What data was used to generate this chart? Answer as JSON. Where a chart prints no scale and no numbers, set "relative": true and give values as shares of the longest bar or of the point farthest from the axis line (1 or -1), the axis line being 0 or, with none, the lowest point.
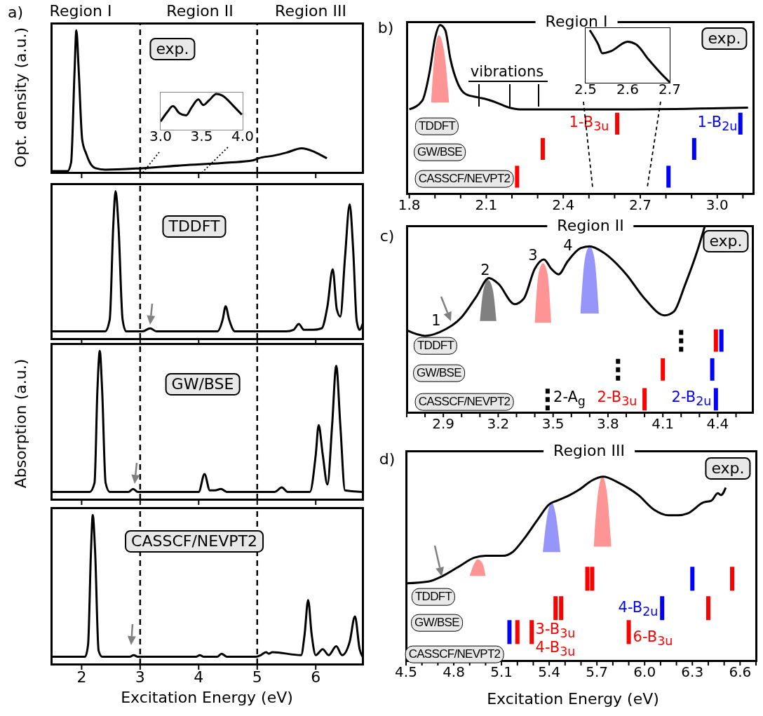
{
  "chart_data": [
    {
      "type": "line",
      "relative": true,
      "ylabel": "Opt. density (a.u.)",
      "xlim": [
        1.48,
        6.8
      ],
      "xticks": [
        2,
        3,
        4,
        5,
        6
      ],
      "tick_labels": false,
      "series": [
        {
          "color": "#000000",
          "x": [
            1.5,
            1.76,
            1.82,
            1.88,
            1.91,
            1.95,
            2.01,
            2.08,
            2.14,
            2.24,
            2.4,
            3.02,
            3.72,
            4.52,
            4.92,
            5.02,
            5.3,
            5.5,
            5.76,
            5.95,
            6.1,
            6.19
          ],
          "values": [
            0.01,
            0.01,
            0.07,
            0.72,
            1.0,
            0.72,
            0.23,
            0.13,
            0.07,
            0.03,
            0.02,
            0.03,
            0.05,
            0.07,
            0.085,
            0.1,
            0.12,
            0.14,
            0.17,
            0.15,
            0.12,
            0.1
          ]
        }
      ],
      "ref_lines": [
        {
          "axis": "x",
          "value": 3,
          "line_style": "dashed"
        },
        {
          "axis": "x",
          "value": 5,
          "line_style": "dashed"
        }
      ],
      "annotations": [
        "a)",
        "Region I",
        "Region II",
        "Region III",
        "exp."
      ]
    },
    {
      "type": "line",
      "relative": true,
      "xlim": [
        3,
        4
      ],
      "xticks": [
        {
          "value": 3,
          "label": "3.0"
        },
        3.5,
        {
          "value": 4,
          "label": "4.0"
        }
      ],
      "tick_labels": "x",
      "series": [
        {
          "color": "#000000",
          "x": [
            3.0,
            3.08,
            3.15,
            3.23,
            3.31,
            3.38,
            3.46,
            3.52,
            3.59,
            3.68,
            3.75,
            3.89,
            3.99
          ],
          "values": [
            0.23,
            0.49,
            0.66,
            0.46,
            0.4,
            0.63,
            0.85,
            0.69,
            0.82,
            1.0,
            0.96,
            0.66,
            0.42
          ]
        }
      ]
    },
    {
      "type": "line",
      "relative": true,
      "xlim": [
        1.48,
        6.8
      ],
      "xticks": [
        2,
        3,
        4,
        5,
        6
      ],
      "tick_labels": false,
      "series": [
        {
          "color": "#000000",
          "x": [
            1.5,
            2.4,
            2.48,
            2.54,
            2.58,
            2.63,
            2.7,
            2.76,
            3.04,
            3.17,
            3.28,
            4.32,
            4.41,
            4.46,
            4.52,
            4.62,
            5.5,
            5.62,
            5.71,
            5.8,
            5.95,
            6.1,
            6.2,
            6.29,
            6.36,
            6.42,
            6.5,
            6.58,
            6.64,
            6.7,
            6.75,
            6.8
          ],
          "values": [
            0.05,
            0.05,
            0.13,
            0.76,
            1.0,
            0.76,
            0.13,
            0.05,
            0.05,
            0.07,
            0.05,
            0.05,
            0.13,
            0.22,
            0.13,
            0.05,
            0.05,
            0.06,
            0.1,
            0.06,
            0.06,
            0.07,
            0.22,
            0.47,
            0.2,
            0.15,
            0.55,
            0.91,
            0.6,
            0.12,
            0.06,
            0.1
          ]
        }
      ],
      "ref_lines": [
        {
          "axis": "x",
          "value": 3,
          "line_style": "dashed"
        },
        {
          "axis": "x",
          "value": 5,
          "line_style": "dashed"
        }
      ],
      "annotations": [
        "TDDFT"
      ]
    },
    {
      "type": "line",
      "relative": true,
      "ylabel": "Absorption (a.u.)",
      "xlim": [
        1.48,
        6.8
      ],
      "xticks": [
        2,
        3,
        4,
        5,
        6
      ],
      "tick_labels": false,
      "series": [
        {
          "color": "#000000",
          "x": [
            1.5,
            2.14,
            2.22,
            2.27,
            2.31,
            2.35,
            2.41,
            2.48,
            2.8,
            2.88,
            2.96,
            4.0,
            4.1,
            4.19,
            4.28,
            4.38,
            4.48,
            5.3,
            5.42,
            5.52,
            5.9,
            6.0,
            6.05,
            6.12,
            6.2,
            6.28,
            6.35,
            6.42,
            6.5,
            6.8
          ],
          "values": [
            0.05,
            0.05,
            0.11,
            0.74,
            1.0,
            0.74,
            0.11,
            0.05,
            0.05,
            0.07,
            0.05,
            0.05,
            0.17,
            0.06,
            0.06,
            0.07,
            0.05,
            0.05,
            0.08,
            0.05,
            0.05,
            0.3,
            0.5,
            0.3,
            0.1,
            0.5,
            0.9,
            0.5,
            0.06,
            0.05
          ]
        }
      ],
      "ref_lines": [
        {
          "axis": "x",
          "value": 3,
          "line_style": "dashed"
        },
        {
          "axis": "x",
          "value": 5,
          "line_style": "dashed"
        }
      ],
      "annotations": [
        "GW/BSE"
      ]
    },
    {
      "type": "line",
      "relative": true,
      "xlabel": "Excitation Energy (eV)",
      "xlim": [
        1.48,
        6.8
      ],
      "xticks": [
        2,
        3,
        4,
        5,
        6
      ],
      "tick_labels": "x",
      "series": [
        {
          "color": "#000000",
          "x": [
            1.5,
            2.06,
            2.11,
            2.16,
            2.19,
            2.23,
            2.29,
            2.35,
            2.82,
            2.89,
            2.96,
            3.96,
            4.02,
            4.08,
            4.32,
            4.39,
            4.48,
            4.98,
            5.06,
            5.15,
            5.2,
            5.26,
            5.75,
            5.81,
            5.87,
            5.93,
            6.0,
            6.12,
            6.22,
            6.35,
            6.45,
            6.58,
            6.67,
            6.75,
            6.8
          ],
          "values": [
            0.05,
            0.05,
            0.13,
            0.76,
            1.0,
            0.76,
            0.09,
            0.05,
            0.05,
            0.06,
            0.05,
            0.05,
            0.06,
            0.05,
            0.05,
            0.07,
            0.05,
            0.05,
            0.06,
            0.08,
            0.07,
            0.08,
            0.06,
            0.2,
            0.43,
            0.2,
            0.06,
            0.1,
            0.06,
            0.12,
            0.06,
            0.15,
            0.32,
            0.1,
            0.05
          ]
        }
      ],
      "ref_lines": [
        {
          "axis": "x",
          "value": 3,
          "line_style": "dashed"
        },
        {
          "axis": "x",
          "value": 5,
          "line_style": "dashed"
        }
      ],
      "annotations": [
        "CASSCF/NEVPT2"
      ]
    },
    {
      "type": "line",
      "relative": true,
      "title": "Region I",
      "xlim": [
        1.79,
        3.14
      ],
      "xticks": [
        1.8,
        {
          "value": 1.9,
          "label": null
        },
        {
          "value": 2.0,
          "label": null
        },
        2.1,
        {
          "value": 2.2,
          "label": null
        },
        {
          "value": 2.3,
          "label": null
        },
        2.4,
        {
          "value": 2.5,
          "label": null
        },
        {
          "value": 2.6,
          "label": null
        },
        2.7,
        {
          "value": 2.8,
          "label": null
        },
        {
          "value": 2.9,
          "label": null
        },
        {
          "value": 3,
          "label": "3.0"
        },
        {
          "value": 3.1,
          "label": null
        }
      ],
      "tick_labels": "x",
      "series": [
        {
          "type": "area",
          "color": "#ff9494",
          "x": [
            1.885,
            1.9,
            1.915,
            1.935,
            1.955
          ],
          "values": [
            0.54,
            0.85,
            0.94,
            0.85,
            0.54
          ]
        },
        {
          "type": "line",
          "color": "#000000",
          "x": [
            1.8,
            1.85,
            1.88,
            1.9,
            1.92,
            1.94,
            1.96,
            1.99,
            2.02,
            2.07,
            2.1,
            2.14,
            2.19,
            2.23,
            2.37,
            2.64,
            3.12
          ],
          "values": [
            0.5,
            0.55,
            0.73,
            0.92,
            1.0,
            0.97,
            0.8,
            0.65,
            0.59,
            0.57,
            0.56,
            0.54,
            0.51,
            0.5,
            0.5,
            0.5,
            0.51
          ]
        },
        {
          "type": "line",
          "color": "#ff0000",
          "x": [
            2.61,
            2.61
          ],
          "values": [
            0.35,
            0.48
          ]
        },
        {
          "type": "line",
          "color": "#ff0000",
          "x": [
            2.32,
            2.32
          ],
          "values": [
            0.2,
            0.33
          ]
        },
        {
          "type": "line",
          "color": "#ff0000",
          "x": [
            2.22,
            2.22
          ],
          "values": [
            0.035,
            0.165
          ]
        },
        {
          "type": "line",
          "color": "#0000ff",
          "x": [
            3.09,
            3.09
          ],
          "values": [
            0.35,
            0.48
          ]
        },
        {
          "type": "line",
          "color": "#0000ff",
          "x": [
            2.91,
            2.91
          ],
          "values": [
            0.2,
            0.33
          ]
        },
        {
          "type": "line",
          "color": "#0000ff",
          "x": [
            2.81,
            2.81
          ],
          "values": [
            0.035,
            0.165
          ]
        }
      ],
      "annotations": [
        "b)",
        "exp.",
        "TDDFT",
        "GW/BSE",
        "CASSCF/NEVPT2",
        "vibrations",
        "1-B$_{3u}$",
        "1-B$_{2u}$"
      ]
    },
    {
      "type": "line",
      "relative": true,
      "xlim": [
        2.5,
        2.7
      ],
      "xticks": [
        2.5,
        2.6,
        2.7
      ],
      "tick_labels": "x",
      "series": [
        {
          "color": "#000000",
          "x": [
            2.51,
            2.53,
            2.54,
            2.56,
            2.6,
            2.62,
            2.65,
            2.68,
            2.7
          ],
          "values": [
            1.0,
            0.73,
            0.56,
            0.6,
            0.78,
            0.73,
            0.44,
            0.17,
            0.01
          ]
        }
      ]
    },
    {
      "type": "line",
      "relative": true,
      "title": "Region II",
      "xlim": [
        2.7,
        4.59
      ],
      "xticks": [
        {
          "value": 2.7,
          "label": null
        },
        {
          "value": 2.8,
          "label": null
        },
        2.9,
        {
          "value": 3,
          "label": null
        },
        {
          "value": 3.1,
          "label": null
        },
        3.2,
        {
          "value": 3.3,
          "label": null
        },
        {
          "value": 3.4,
          "label": null
        },
        3.5,
        {
          "value": 3.6,
          "label": null
        },
        {
          "value": 3.7,
          "label": null
        },
        3.8,
        {
          "value": 3.9,
          "label": null
        },
        {
          "value": 4,
          "label": null
        },
        4.1,
        {
          "value": 4.2,
          "label": null
        },
        {
          "value": 4.3,
          "label": null
        },
        4.4,
        {
          "value": 4.5,
          "label": null
        }
      ],
      "tick_labels": "x",
      "series": [
        {
          "type": "area",
          "color": "#808080",
          "x": [
            3.1,
            3.12,
            3.145,
            3.17,
            3.19
          ],
          "values": [
            0.49,
            0.66,
            0.71,
            0.66,
            0.49
          ]
        },
        {
          "type": "area",
          "color": "#ff9494",
          "x": [
            3.4,
            3.42,
            3.445,
            3.47,
            3.49
          ],
          "values": [
            0.48,
            0.74,
            0.8,
            0.74,
            0.48
          ]
        },
        {
          "type": "area",
          "color": "#9595fa",
          "x": [
            3.65,
            3.675,
            3.7,
            3.725,
            3.75
          ],
          "values": [
            0.53,
            0.83,
            0.89,
            0.83,
            0.53
          ]
        },
        {
          "type": "line",
          "color": "#000000",
          "x": [
            2.7,
            2.8,
            2.88,
            3.0,
            3.08,
            3.15,
            3.2,
            3.29,
            3.34,
            3.4,
            3.45,
            3.49,
            3.53,
            3.58,
            3.65,
            3.7,
            3.77,
            3.9,
            4.0,
            4.11,
            4.16,
            4.22,
            4.29,
            4.33
          ],
          "values": [
            0.44,
            0.41,
            0.43,
            0.51,
            0.62,
            0.72,
            0.69,
            0.58,
            0.61,
            0.77,
            0.82,
            0.77,
            0.74,
            0.81,
            0.88,
            0.89,
            0.86,
            0.74,
            0.61,
            0.52,
            0.54,
            0.68,
            0.87,
            1.0
          ]
        },
        {
          "type": "line",
          "color": "#000000",
          "line_style": "dotted",
          "x": [
            4.2,
            4.2
          ],
          "values": [
            0.325,
            0.445
          ]
        },
        {
          "type": "line",
          "color": "#000000",
          "line_style": "dotted",
          "x": [
            3.855,
            3.855
          ],
          "values": [
            0.17,
            0.29
          ]
        },
        {
          "type": "line",
          "color": "#000000",
          "line_style": "dotted",
          "x": [
            3.47,
            3.47
          ],
          "values": [
            0.01,
            0.13
          ]
        },
        {
          "type": "line",
          "color": "#ff0000",
          "x": [
            4.39,
            4.39
          ],
          "values": [
            0.325,
            0.445
          ]
        },
        {
          "type": "line",
          "color": "#ff0000",
          "x": [
            4.1,
            4.1
          ],
          "values": [
            0.17,
            0.29
          ]
        },
        {
          "type": "line",
          "color": "#ff0000",
          "x": [
            4.0,
            4.0
          ],
          "values": [
            0.01,
            0.13
          ]
        },
        {
          "type": "line",
          "color": "#0000ff",
          "x": [
            4.42,
            4.42
          ],
          "values": [
            0.325,
            0.445
          ]
        },
        {
          "type": "line",
          "color": "#0000ff",
          "x": [
            4.37,
            4.37
          ],
          "values": [
            0.17,
            0.29
          ]
        },
        {
          "type": "line",
          "color": "#0000ff",
          "x": [
            4.39,
            4.39
          ],
          "values": [
            0.01,
            0.13
          ]
        }
      ],
      "annotations": [
        "c)",
        "exp.",
        "TDDFT",
        "GW/BSE",
        "CASSCF/NEVPT2",
        "1",
        "2",
        "3",
        "4",
        "2-A$_{g}$",
        "2-B$_{3u}$",
        "2-B$_{2u}$"
      ]
    },
    {
      "type": "line",
      "relative": true,
      "title": "Region III",
      "xlabel": "Excitation Energy (eV)",
      "xlim": [
        4.5,
        6.7
      ],
      "xticks": [
        4.5,
        {
          "value": 4.6,
          "label": null
        },
        {
          "value": 4.7,
          "label": null
        },
        4.8,
        {
          "value": 4.9,
          "label": null
        },
        {
          "value": 5,
          "label": null
        },
        5.1,
        {
          "value": 5.2,
          "label": null
        },
        {
          "value": 5.3,
          "label": null
        },
        5.4,
        {
          "value": 5.5,
          "label": null
        },
        {
          "value": 5.6,
          "label": null
        },
        5.7,
        {
          "value": 5.8,
          "label": null
        },
        {
          "value": 5.9,
          "label": null
        },
        {
          "value": 6,
          "label": "6.0"
        },
        {
          "value": 6.1,
          "label": null
        },
        {
          "value": 6.2,
          "label": null
        },
        6.3,
        {
          "value": 6.4,
          "label": null
        },
        {
          "value": 6.5,
          "label": null
        },
        6.6,
        {
          "value": 6.7,
          "label": null
        }
      ],
      "tick_labels": "x",
      "series": [
        {
          "type": "area",
          "color": "#ff9494",
          "x": [
            4.9,
            4.93,
            4.95,
            4.98,
            5.0
          ],
          "values": [
            0.46,
            0.53,
            0.55,
            0.53,
            0.46
          ]
        },
        {
          "type": "area",
          "color": "#9595fa",
          "x": [
            5.36,
            5.39,
            5.415,
            5.44,
            5.47
          ],
          "values": [
            0.59,
            0.8,
            0.86,
            0.8,
            0.59
          ]
        },
        {
          "type": "area",
          "color": "#ff9494",
          "x": [
            5.68,
            5.71,
            5.735,
            5.76,
            5.79
          ],
          "values": [
            0.62,
            0.93,
            1.0,
            0.93,
            0.62
          ]
        },
        {
          "type": "line",
          "color": "#000000",
          "x": [
            4.5,
            4.64,
            4.73,
            4.83,
            4.93,
            5.0,
            5.11,
            5.17,
            5.24,
            5.33,
            5.4,
            5.45,
            5.53,
            5.59,
            5.67,
            5.74,
            5.83,
            5.96,
            6.06,
            6.15,
            6.21,
            6.27,
            6.37,
            6.42,
            6.46,
            6.48,
            6.51
          ],
          "values": [
            0.42,
            0.43,
            0.46,
            0.51,
            0.56,
            0.57,
            0.57,
            0.59,
            0.66,
            0.77,
            0.85,
            0.87,
            0.9,
            0.93,
            0.98,
            1.0,
            0.97,
            0.9,
            0.82,
            0.79,
            0.79,
            0.8,
            0.86,
            0.87,
            0.91,
            0.9,
            0.94
          ]
        },
        {
          "type": "line",
          "color": "#ff0000",
          "x": [
            5.64,
            5.64
          ],
          "values": [
            0.38,
            0.51
          ]
        },
        {
          "type": "line",
          "color": "#ff0000",
          "x": [
            5.67,
            5.67
          ],
          "values": [
            0.38,
            0.51
          ]
        },
        {
          "type": "line",
          "color": "#ff0000",
          "x": [
            6.55,
            6.55
          ],
          "values": [
            0.38,
            0.51
          ]
        },
        {
          "type": "line",
          "color": "#ff0000",
          "x": [
            5.44,
            5.44
          ],
          "values": [
            0.22,
            0.35
          ]
        },
        {
          "type": "line",
          "color": "#ff0000",
          "x": [
            5.475,
            5.475
          ],
          "values": [
            0.22,
            0.35
          ]
        },
        {
          "type": "line",
          "color": "#ff0000",
          "x": [
            6.4,
            6.4
          ],
          "values": [
            0.22,
            0.35
          ]
        },
        {
          "type": "line",
          "color": "#ff0000",
          "x": [
            5.2,
            5.2
          ],
          "values": [
            0.09,
            0.22
          ]
        },
        {
          "type": "line",
          "color": "#ff0000",
          "x": [
            5.29,
            5.29
          ],
          "values": [
            0.09,
            0.22
          ]
        },
        {
          "type": "line",
          "color": "#ff0000",
          "x": [
            5.9,
            5.9
          ],
          "values": [
            0.09,
            0.22
          ]
        },
        {
          "type": "line",
          "color": "#0000ff",
          "x": [
            6.3,
            6.3
          ],
          "values": [
            0.38,
            0.51
          ]
        },
        {
          "type": "line",
          "color": "#0000ff",
          "x": [
            6.11,
            6.11
          ],
          "values": [
            0.22,
            0.35
          ]
        },
        {
          "type": "line",
          "color": "#0000ff",
          "x": [
            5.15,
            5.15
          ],
          "values": [
            0.09,
            0.22
          ]
        }
      ],
      "annotations": [
        "d)",
        "exp.",
        "TDDFT",
        "GW/BSE",
        "CASSCF/NEVPT2",
        "3-B$_{3u}$",
        "4-B$_{3u}$",
        "4-B$_{2u}$",
        "6-B$_{3u}$"
      ]
    }
  ]
}
